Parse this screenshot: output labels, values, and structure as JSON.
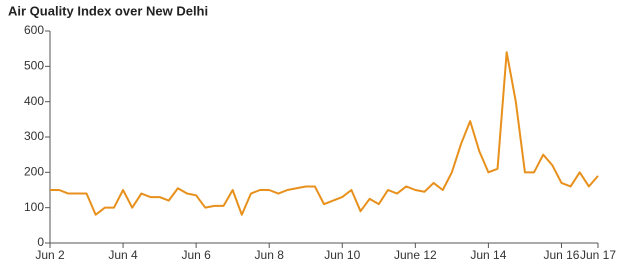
{
  "chart_data": {
    "type": "line",
    "title": "Air Quality Index over New Delhi",
    "color": "#e8901c",
    "x": [
      2,
      2.25,
      2.5,
      2.75,
      3,
      3.25,
      3.5,
      3.75,
      4,
      4.25,
      4.5,
      4.75,
      5,
      5.25,
      5.5,
      5.75,
      6,
      6.25,
      6.5,
      6.75,
      7,
      7.25,
      7.5,
      7.75,
      8,
      8.25,
      8.5,
      8.75,
      9,
      9.25,
      9.5,
      9.75,
      10,
      10.25,
      10.5,
      10.75,
      11,
      11.25,
      11.5,
      11.75,
      12,
      12.25,
      12.5,
      12.75,
      13,
      13.25,
      13.5,
      13.75,
      14,
      14.25,
      14.5,
      14.75,
      15,
      15.25,
      15.5,
      15.75,
      16,
      16.25,
      16.5,
      16.75,
      17
    ],
    "values": [
      150,
      150,
      140,
      140,
      140,
      80,
      100,
      100,
      150,
      100,
      140,
      130,
      130,
      120,
      155,
      140,
      135,
      100,
      105,
      105,
      150,
      80,
      140,
      150,
      150,
      140,
      150,
      155,
      160,
      160,
      110,
      120,
      130,
      150,
      90,
      125,
      110,
      150,
      140,
      160,
      150,
      145,
      170,
      150,
      200,
      280,
      345,
      260,
      200,
      210,
      540,
      400,
      200,
      200,
      250,
      220,
      170,
      160,
      200,
      160,
      190
    ],
    "xlim": [
      2,
      17
    ],
    "xticks": [
      {
        "value": 2,
        "label": "Jun 2"
      },
      {
        "value": 4,
        "label": "Jun 4"
      },
      {
        "value": 6,
        "label": "Jun 6"
      },
      {
        "value": 8,
        "label": "Jun 8"
      },
      {
        "value": 10,
        "label": "Jun 10"
      },
      {
        "value": 12,
        "label": "June 12"
      },
      {
        "value": 14,
        "label": "Jun 14"
      },
      {
        "value": 16,
        "label": "Jun 16"
      },
      {
        "value": 17,
        "label": "Jun 17"
      }
    ],
    "ylim": [
      0,
      600
    ],
    "yticks": [
      0,
      100,
      200,
      300,
      400,
      500,
      600
    ]
  }
}
